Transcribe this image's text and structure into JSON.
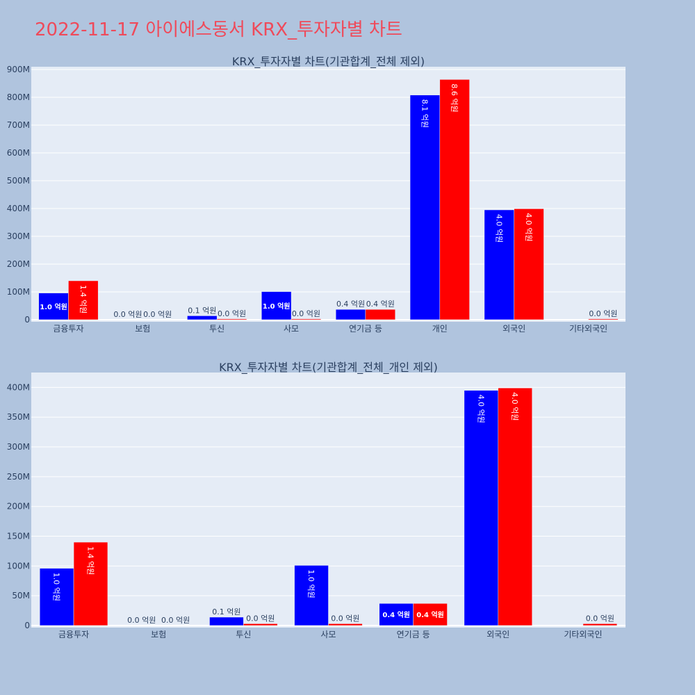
{
  "page_title": "2022-11-17 아이에스동서 KRX_투자자별 차트",
  "colors": {
    "series1": "#0000ff",
    "series2": "#ff0000",
    "plot_bg": "#e5ecf6",
    "page_bg": "#b0c4de",
    "title": "#ef4a5a"
  },
  "chart_data": [
    {
      "type": "bar",
      "title": "KRX_투자자별 차트(기관합계_전체 제외)",
      "xlabel": "",
      "ylabel": "",
      "ylim": [
        0,
        910000000
      ],
      "yticks": [
        0,
        100000000,
        200000000,
        300000000,
        400000000,
        500000000,
        600000000,
        700000000,
        800000000,
        900000000
      ],
      "ytick_labels": [
        "0",
        "100M",
        "200M",
        "300M",
        "400M",
        "500M",
        "600M",
        "700M",
        "800M",
        "900M"
      ],
      "grid": true,
      "categories": [
        "금융투자",
        "보험",
        "투신",
        "사모",
        "연기금 등",
        "개인",
        "외국인",
        "기타외국인"
      ],
      "series": [
        {
          "color": "#0000ff",
          "values": [
            96000000,
            0,
            14000000,
            101000000,
            37000000,
            808000000,
            395000000,
            0
          ],
          "labels": [
            "1.0 억원",
            "0.0 억원",
            "0.1 억원",
            "1.0 억원",
            "0.4 억원",
            "8.1 억원",
            "4.0 억원",
            ""
          ]
        },
        {
          "color": "#ff0000",
          "values": [
            140000000,
            0,
            3000000,
            3000000,
            37000000,
            864000000,
            399000000,
            3000000
          ],
          "labels": [
            "1.4 억원",
            "0.0 억원",
            "0.0 억원",
            "0.0 억원",
            "0.4 억원",
            "8.6 억원",
            "4.0 억원",
            "0.0 억원"
          ]
        }
      ]
    },
    {
      "type": "bar",
      "title": "KRX_투자자별 차트(기관합계_전체_개인 제외)",
      "xlabel": "",
      "ylabel": "",
      "ylim": [
        0,
        425000000
      ],
      "yticks": [
        0,
        50000000,
        100000000,
        150000000,
        200000000,
        250000000,
        300000000,
        350000000,
        400000000
      ],
      "ytick_labels": [
        "0",
        "50M",
        "100M",
        "150M",
        "200M",
        "250M",
        "300M",
        "350M",
        "400M"
      ],
      "grid": true,
      "categories": [
        "금융투자",
        "보험",
        "투신",
        "사모",
        "연기금 등",
        "외국인",
        "기타외국인"
      ],
      "series": [
        {
          "color": "#0000ff",
          "values": [
            96000000,
            0,
            14000000,
            101000000,
            37000000,
            395000000,
            0
          ],
          "labels": [
            "1.0 억원",
            "0.0 억원",
            "0.1 억원",
            "1.0 억원",
            "0.4 억원",
            "4.0 억원",
            ""
          ]
        },
        {
          "color": "#ff0000",
          "values": [
            140000000,
            0,
            3000000,
            3000000,
            37000000,
            399000000,
            3000000
          ],
          "labels": [
            "1.4 억원",
            "0.0 억원",
            "0.0 억원",
            "0.0 억원",
            "0.4 억원",
            "4.0 억원",
            "0.0 억원"
          ]
        }
      ]
    }
  ]
}
